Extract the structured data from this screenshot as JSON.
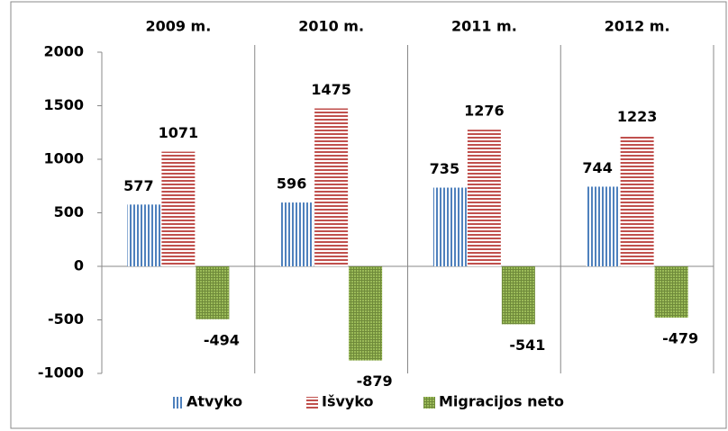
{
  "chart_data": {
    "type": "bar",
    "categories": [
      "2009 m.",
      "2010 m.",
      "2011 m.",
      "2012 m."
    ],
    "series": [
      {
        "name": "Atvyko",
        "color": "#4f81bd",
        "pattern": "vertical",
        "values": [
          577,
          596,
          735,
          744
        ]
      },
      {
        "name": "Išvyko",
        "color": "#c0504d",
        "pattern": "horizontal",
        "values": [
          1071,
          1475,
          1276,
          1223
        ]
      },
      {
        "name": "Migracijos neto",
        "color": "#9bbb59",
        "pattern": "dots",
        "values": [
          -494,
          -879,
          -541,
          -479
        ]
      }
    ],
    "ylim": [
      -1000,
      2000
    ],
    "yticks": [
      -1000,
      -500,
      0,
      500,
      1000,
      1500,
      2000
    ],
    "legend": "bottom",
    "category_labels": "top"
  }
}
